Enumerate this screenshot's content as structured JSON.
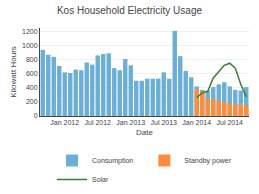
{
  "chart_data": {
    "type": "bar",
    "title": "Kos Household Electricity Usage",
    "xlabel": "Date",
    "ylabel": "Kilowatt Hours",
    "categories": [
      null,
      null,
      null,
      null,
      "Jan 2012",
      null,
      null,
      null,
      null,
      null,
      "Jul 2012",
      null,
      null,
      null,
      null,
      null,
      "Jan 2013",
      null,
      null,
      null,
      null,
      null,
      "Jul 2013",
      null,
      null,
      null,
      null,
      null,
      "Jan 2014",
      null,
      null,
      null,
      null,
      null,
      "Jul 2014",
      null,
      null,
      null
    ],
    "series": [
      {
        "name": "Consumption",
        "type": "bar",
        "color": "#6baed6",
        "values": [
          940,
          870,
          840,
          710,
          620,
          610,
          660,
          650,
          760,
          730,
          860,
          880,
          890,
          680,
          650,
          810,
          720,
          500,
          500,
          530,
          530,
          530,
          620,
          530,
          1210,
          850,
          640,
          550,
          420,
          370,
          360,
          410,
          450,
          480,
          420,
          370,
          360,
          410
        ]
      },
      {
        "name": "Standby power",
        "type": "bar",
        "color": "#fd8d3c",
        "values": [
          0,
          0,
          0,
          0,
          0,
          0,
          0,
          0,
          0,
          0,
          0,
          0,
          0,
          0,
          0,
          0,
          0,
          0,
          0,
          0,
          0,
          0,
          0,
          0,
          0,
          0,
          0,
          0,
          380,
          350,
          240,
          240,
          210,
          200,
          180,
          160,
          170,
          150
        ]
      },
      {
        "name": "Solar",
        "type": "line",
        "color": "#3a7d3a",
        "values": [
          null,
          null,
          null,
          null,
          null,
          null,
          null,
          null,
          null,
          null,
          null,
          null,
          null,
          null,
          null,
          null,
          null,
          null,
          null,
          null,
          null,
          null,
          null,
          null,
          null,
          null,
          null,
          null,
          260,
          330,
          350,
          540,
          630,
          720,
          750,
          680,
          450,
          270
        ]
      }
    ],
    "ylim": [
      0,
      1250
    ],
    "yticks": [
      0,
      200,
      400,
      600,
      800,
      1000,
      1200
    ],
    "grid": true,
    "legend": "bottom"
  }
}
